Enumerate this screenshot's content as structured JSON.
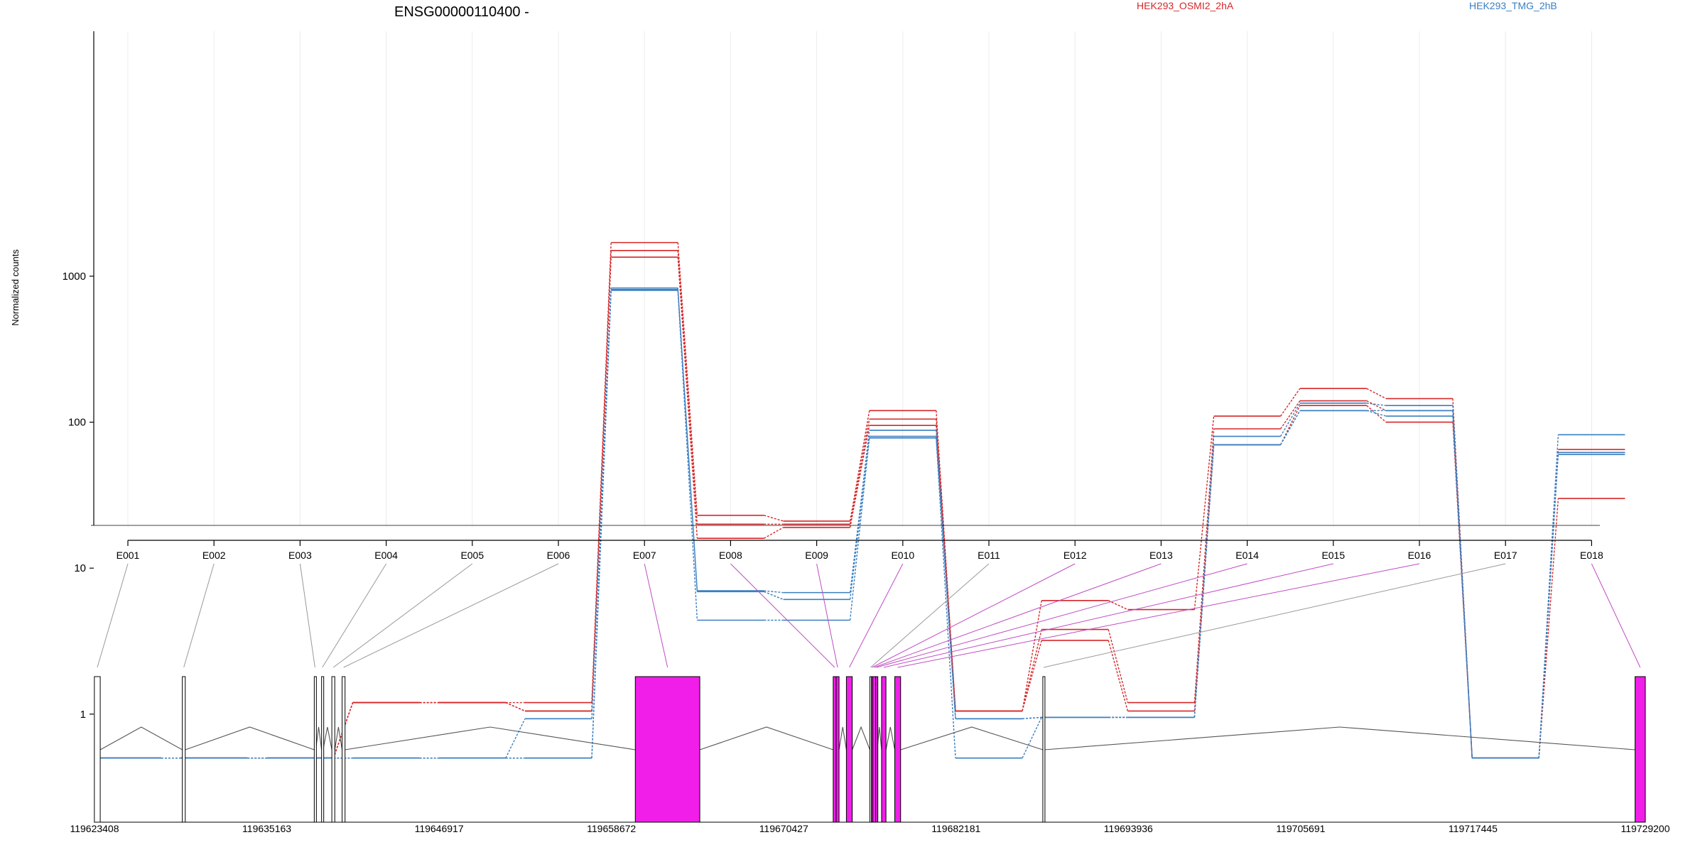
{
  "chart_data": {
    "type": "line",
    "title": "ENSG00000110400 -",
    "ylabel": "Normalized counts",
    "y_scale": "log",
    "y_ticks": [
      1,
      10,
      100,
      1000
    ],
    "y_tick_labels": [
      "1",
      "10",
      "100",
      "1000"
    ],
    "grid": true,
    "legend_position": "top",
    "legend": [
      {
        "name": "HEK293_OSMI2_2hA",
        "color": "#d62728"
      },
      {
        "name": "HEK293_TMG_2hB",
        "color": "#3a7fc1"
      }
    ],
    "categories": [
      "E001",
      "E002",
      "E003",
      "E004",
      "E005",
      "E006",
      "E007",
      "E008",
      "E009",
      "E010",
      "E011",
      "E012",
      "E013",
      "E014",
      "E015",
      "E016",
      "E017",
      "E018"
    ],
    "series": [
      {
        "group": "HEK293_OSMI2_2hA",
        "color": "#d62728",
        "values": [
          0.5,
          0.5,
          0.5,
          1.2,
          1.2,
          1.2,
          1700,
          23,
          21,
          120,
          1.05,
          6,
          5.2,
          110,
          170,
          145,
          0.5,
          65
        ]
      },
      {
        "group": "HEK293_OSMI2_2hA",
        "color": "#d62728",
        "values": [
          0.5,
          0.5,
          0.5,
          1.2,
          1.2,
          1.05,
          1500,
          20,
          20,
          105,
          1.05,
          3.8,
          1.2,
          90,
          140,
          120,
          0.5,
          62
        ]
      },
      {
        "group": "HEK293_OSMI2_2hA",
        "color": "#d62728",
        "values": [
          0.5,
          0.5,
          0.5,
          1.2,
          1.2,
          1.05,
          1350,
          16,
          19,
          95,
          1.05,
          3.2,
          1.05,
          70,
          130,
          100,
          0.5,
          30
        ]
      },
      {
        "group": "HEK293_TMG_2hB",
        "color": "#3a7fc1",
        "values": [
          0.5,
          0.5,
          0.5,
          0.5,
          0.5,
          0.93,
          830,
          7,
          6.8,
          88,
          0.93,
          0.95,
          0.95,
          80,
          135,
          130,
          0.5,
          82
        ]
      },
      {
        "group": "HEK293_TMG_2hB",
        "color": "#3a7fc1",
        "values": [
          0.5,
          0.5,
          0.5,
          0.5,
          0.5,
          0.5,
          810,
          6.9,
          6.1,
          80,
          0.93,
          0.95,
          0.95,
          70,
          120,
          120,
          0.5,
          62
        ]
      },
      {
        "group": "HEK293_TMG_2hB",
        "color": "#3a7fc1",
        "values": [
          0.5,
          0.5,
          0.5,
          0.5,
          0.5,
          0.5,
          800,
          4.4,
          4.4,
          78,
          0.5,
          0.95,
          0.95,
          70,
          120,
          110,
          0.5,
          60
        ]
      }
    ],
    "genomic_axis": {
      "range": [
        119623408,
        119729200
      ],
      "tick_labels": [
        "119623408",
        "119635163",
        "119646917",
        "119658672",
        "119670427",
        "119682181",
        "119693936",
        "119705691",
        "119717445",
        "119729200"
      ]
    },
    "exons": [
      {
        "id": "E001",
        "start": 119623400,
        "end": 119623800,
        "highlight": false
      },
      {
        "id": "E002",
        "start": 119629400,
        "end": 119629600,
        "highlight": false
      },
      {
        "id": "E003",
        "start": 119638400,
        "end": 119638500,
        "highlight": false
      },
      {
        "id": "E004",
        "start": 119638900,
        "end": 119639000,
        "highlight": false
      },
      {
        "id": "E005",
        "start": 119639600,
        "end": 119639800,
        "highlight": false
      },
      {
        "id": "E006",
        "start": 119640300,
        "end": 119640500,
        "highlight": false
      },
      {
        "id": "E007",
        "start": 119660300,
        "end": 119664700,
        "highlight": true
      },
      {
        "id": "E008",
        "start": 119673800,
        "end": 119674000,
        "highlight": true
      },
      {
        "id": "E009",
        "start": 119674000,
        "end": 119674200,
        "highlight": true
      },
      {
        "id": "E010",
        "start": 119674700,
        "end": 119675100,
        "highlight": true
      },
      {
        "id": "E011",
        "start": 119676300,
        "end": 119676400,
        "highlight": false
      },
      {
        "id": "E012",
        "start": 119676400,
        "end": 119676500,
        "highlight": true
      },
      {
        "id": "E013",
        "start": 119676500,
        "end": 119676700,
        "highlight": true
      },
      {
        "id": "E014",
        "start": 119676700,
        "end": 119676800,
        "highlight": true
      },
      {
        "id": "E015",
        "start": 119677100,
        "end": 119677400,
        "highlight": true
      },
      {
        "id": "E016",
        "start": 119678000,
        "end": 119678400,
        "highlight": true
      },
      {
        "id": "E017",
        "start": 119688100,
        "end": 119688200,
        "highlight": false
      },
      {
        "id": "E018",
        "start": 119728500,
        "end": 119729200,
        "highlight": true
      }
    ],
    "highlight_color": "#f01ee8"
  }
}
